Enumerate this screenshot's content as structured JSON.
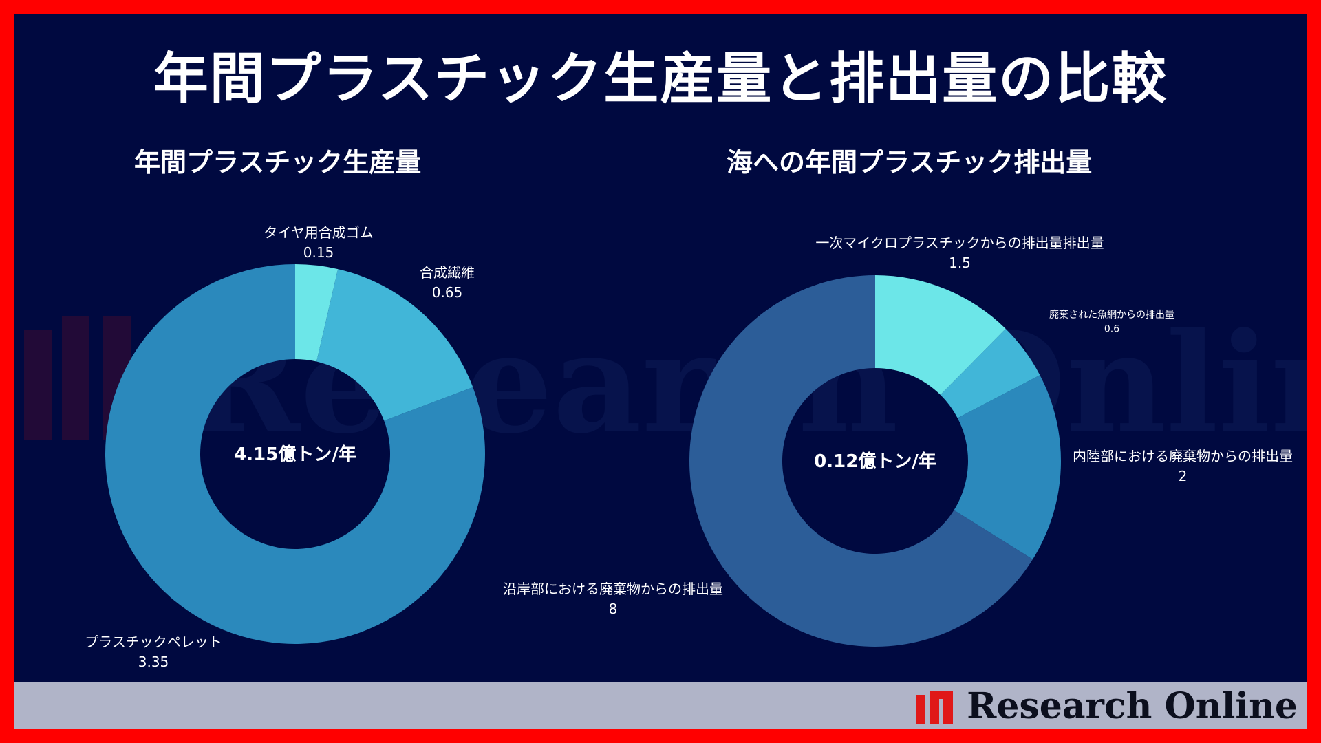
{
  "title": "年間プラスチック生産量と排出量の比較",
  "watermark_text": "Research Online",
  "logo_text": "Research Online",
  "colors": {
    "background": "#000940",
    "border": "#ff0000",
    "footer": "#b0b4c8"
  },
  "chart_data": [
    {
      "type": "pie",
      "donut": true,
      "title": "年間プラスチック生産量",
      "center_label": "4.15億トン/年",
      "slices": [
        {
          "label": "タイヤ用合成ゴム",
          "value": 0.15,
          "value_text": "0.15",
          "color": "#6ce6e8"
        },
        {
          "label": "合成繊維",
          "value": 0.65,
          "value_text": "0.65",
          "color": "#41b6d8"
        },
        {
          "label": "プラスチックペレット",
          "value": 3.35,
          "value_text": "3.35",
          "color": "#2b89bc"
        }
      ]
    },
    {
      "type": "pie",
      "donut": true,
      "title": "海への年間プラスチック排出量",
      "center_label": "0.12億トン/年",
      "slices": [
        {
          "label": "一次マイクロプラスチックからの排出量排出量",
          "value": 1.5,
          "value_text": "1.5",
          "color": "#6ce6e8"
        },
        {
          "label": "廃棄された魚網からの排出量",
          "value": 0.6,
          "value_text": "0.6",
          "color": "#41b6d8"
        },
        {
          "label": "内陸部における廃棄物からの排出量",
          "value": 2,
          "value_text": "2",
          "color": "#2b89bc"
        },
        {
          "label": "沿岸部における廃棄物からの排出量",
          "value": 8,
          "value_text": "8",
          "color": "#2c5d98"
        }
      ]
    }
  ]
}
